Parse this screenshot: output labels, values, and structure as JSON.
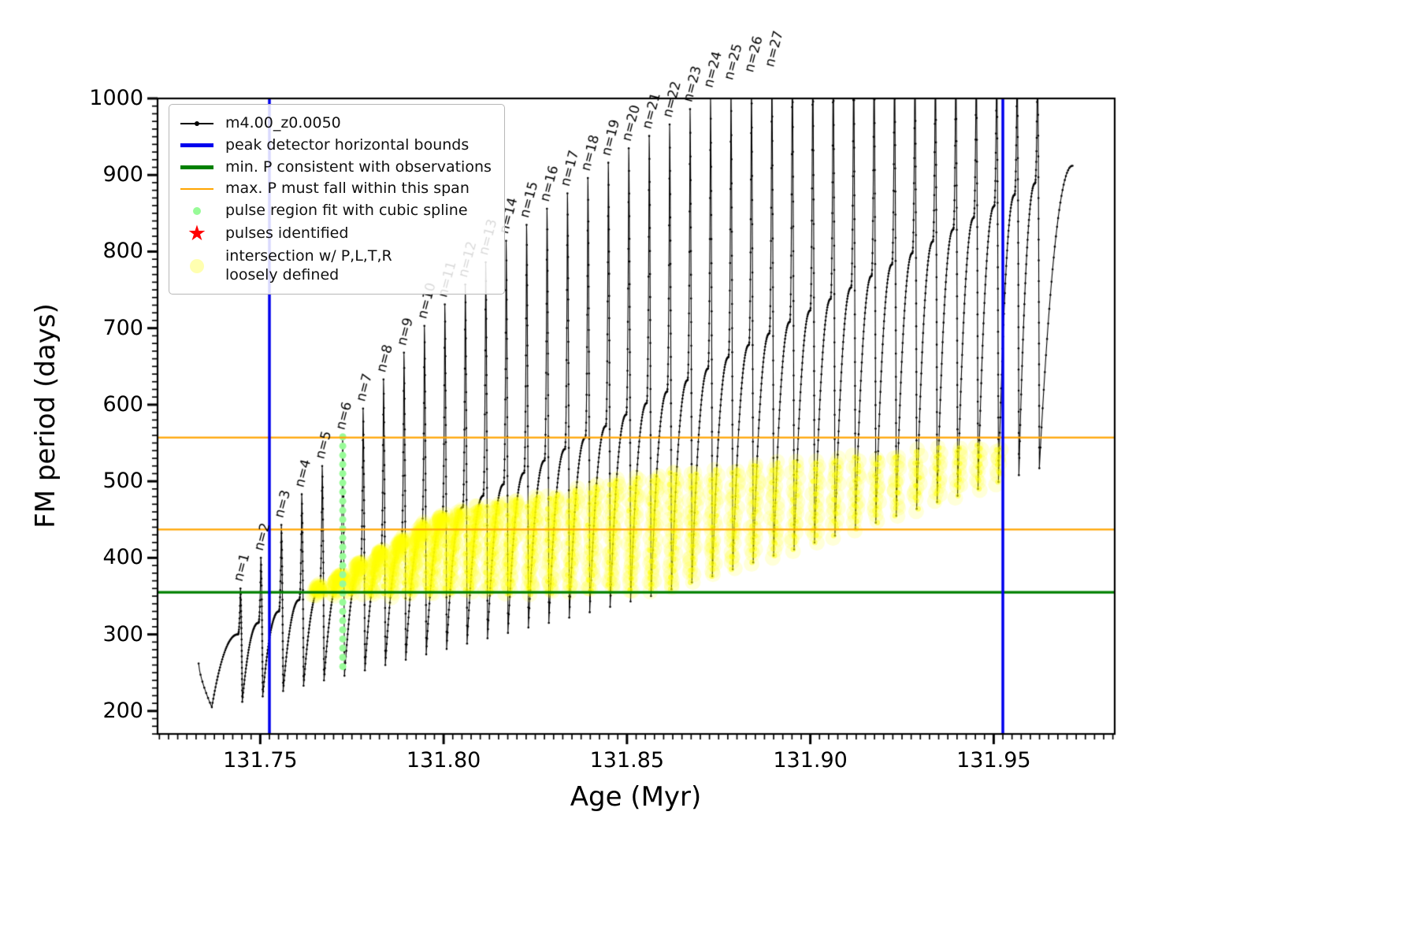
{
  "chart_data": {
    "type": "line",
    "title": "",
    "xlabel": "Age (Myr)",
    "ylabel": "FM period (days)",
    "xlim": [
      131.722,
      131.983
    ],
    "ylim": [
      170,
      1000
    ],
    "xticks": {
      "values": [
        131.75,
        131.8,
        131.85,
        131.9,
        131.95
      ],
      "labels": [
        "131.75",
        "131.80",
        "131.85",
        "131.90",
        "131.95"
      ]
    },
    "x_minor_step": 0.0025,
    "yticks": [
      200,
      300,
      400,
      500,
      600,
      700,
      800,
      900,
      1000
    ],
    "y_minor_step": 10,
    "series_label": "m4.00_z0.0050",
    "series_color": "#000000",
    "vlines": {
      "label": "peak detector horizontal bounds",
      "color": "#0000EE",
      "width": 3.5,
      "xs": [
        131.7525,
        131.9525
      ]
    },
    "hline_min_p": {
      "label": "min. P consistent with observations",
      "color": "#008000",
      "width": 3.2,
      "y": 355
    },
    "hlines_max_p": {
      "label": "max. P must fall within this span",
      "color": "#FFA500",
      "width": 2.2,
      "ys": [
        437,
        557
      ]
    },
    "spline_region": {
      "label": "pulse region fit with cubic spline",
      "color": "#98FB98",
      "x": 131.7725,
      "y_min": 258,
      "y_max": 558,
      "dot_step": 12
    },
    "pulses_identified": {
      "label": "pulses identified",
      "color": "#FF0000",
      "points": []
    },
    "intersection": {
      "label": "intersection w/ P,L,T,R\nloosely defined",
      "color": "#FFFF00",
      "t_range": [
        131.765,
        131.9525
      ],
      "y_floor": 355,
      "y_cap": 557,
      "top_anchors": [
        [
          5,
          365
        ],
        [
          7,
          395
        ],
        [
          10,
          450
        ],
        [
          13,
          470
        ],
        [
          16,
          482
        ],
        [
          20,
          505
        ],
        [
          24,
          517
        ],
        [
          28,
          527
        ],
        [
          32,
          537
        ],
        [
          36,
          546
        ],
        [
          40,
          557
        ]
      ]
    },
    "pulses": {
      "t0": 131.7446,
      "dt": 0.005573,
      "count": 40,
      "labeled_count": 27,
      "label_prefix": "n=",
      "spike_dt": 0.0007,
      "drop_dt": 0.0005,
      "peaks": [
        360,
        400,
        443,
        483,
        520,
        558,
        595,
        633,
        668,
        703,
        731,
        757,
        786,
        814,
        835,
        856,
        876,
        896,
        916,
        935,
        951,
        966,
        986,
        1005,
        1015,
        1025,
        1040,
        1060,
        1060,
        1060,
        1060,
        1060,
        1060,
        1060,
        1060,
        1060,
        1060,
        1060,
        1060,
        1060
      ],
      "troughs": [
        205,
        212,
        219,
        226,
        233,
        240,
        246,
        253,
        260,
        267,
        274,
        281,
        288,
        295,
        302,
        309,
        315,
        322,
        329,
        336,
        343,
        350,
        359,
        368,
        376,
        385,
        394,
        403,
        411,
        420,
        429,
        438,
        446,
        455,
        464,
        473,
        481,
        490,
        499,
        508,
        517
      ],
      "shoulders": [
        300,
        315,
        330,
        345,
        360,
        376,
        391,
        406,
        421,
        436,
        451,
        466,
        481,
        496,
        511,
        527,
        542,
        557,
        572,
        587,
        602,
        617,
        632,
        647,
        662,
        678,
        693,
        708,
        723,
        738,
        753,
        768,
        783,
        798,
        813,
        829,
        844,
        859,
        874,
        889,
        904
      ],
      "start": {
        "t": 131.7332,
        "y": 262,
        "trough_t": 131.7368
      },
      "tail": {
        "end_t": 131.9715,
        "end_y": 912
      }
    },
    "legend": {
      "items": [
        {
          "marker": "line-dot",
          "color": "#000000",
          "label": "m4.00_z0.0050"
        },
        {
          "marker": "thick-line",
          "color": "#0000EE",
          "label": "peak detector horizontal bounds"
        },
        {
          "marker": "thick-line",
          "color": "#008000",
          "label": "min. P consistent with observations"
        },
        {
          "marker": "line",
          "color": "#FFA500",
          "label": "max. P must fall within this span"
        },
        {
          "marker": "dot-small",
          "color": "#98FB98",
          "label": "pulse region fit with cubic spline"
        },
        {
          "marker": "star",
          "color": "#FF0000",
          "label": "pulses identified"
        },
        {
          "marker": "dot-large",
          "color": "#FFFFB0",
          "label": "intersection w/ P,L,T,R\nloosely defined"
        }
      ]
    }
  }
}
